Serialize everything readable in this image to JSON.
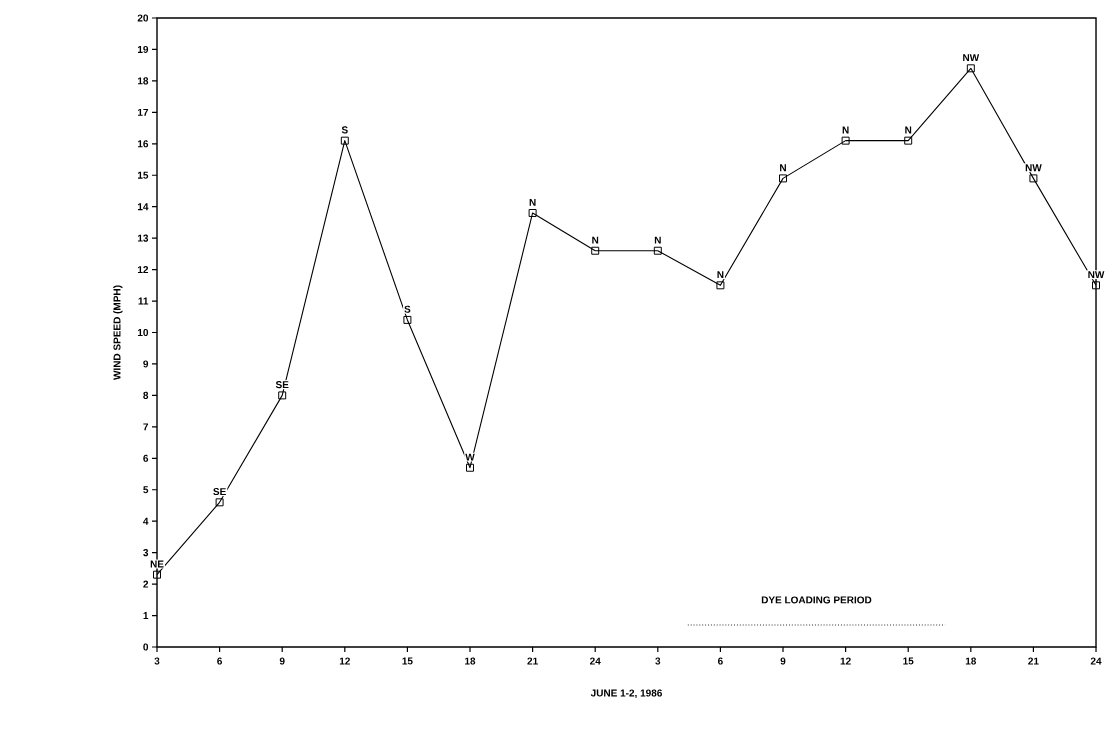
{
  "chart_data": {
    "type": "line",
    "xlabel": "JUNE 1-2, 1986",
    "ylabel": "WIND SPEED (MPH)",
    "categories": [
      "3",
      "6",
      "9",
      "12",
      "15",
      "18",
      "21",
      "24",
      "3",
      "6",
      "9",
      "12",
      "15",
      "18",
      "21",
      "24"
    ],
    "series": [
      {
        "color": "#000000",
        "values": [
          2.3,
          4.6,
          8.0,
          16.1,
          10.4,
          5.7,
          13.8,
          12.6,
          12.6,
          11.5,
          14.9,
          16.1,
          16.1,
          18.4,
          14.9,
          11.5
        ],
        "value_labels": [
          "NE",
          "SE",
          "SE",
          "S",
          "S",
          "W",
          "N",
          "N",
          "N",
          "N",
          "N",
          "N",
          "N",
          "NW",
          "NW",
          "NW"
        ]
      }
    ],
    "ylim": [
      0,
      20
    ],
    "yticks": [
      0,
      1,
      2,
      3,
      4,
      5,
      6,
      7,
      8,
      9,
      10,
      11,
      12,
      13,
      14,
      15,
      16,
      17,
      18,
      19,
      20
    ],
    "ref_lines": [
      {
        "axis": "y",
        "value": 0.7,
        "label": "DYE LOADING PERIOD",
        "line_style": "dotted",
        "color": "#000000"
      }
    ],
    "marker": "square",
    "line_style": "solid",
    "grid": false
  }
}
